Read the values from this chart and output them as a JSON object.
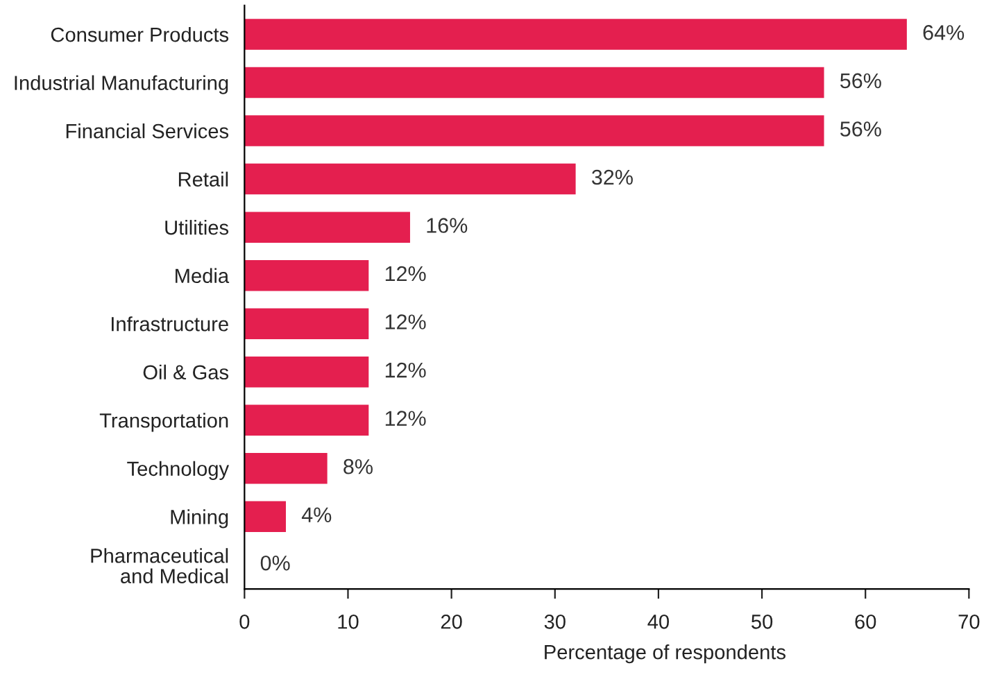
{
  "chart_data": {
    "type": "bar",
    "orientation": "horizontal",
    "categories": [
      "Consumer Products",
      "Industrial Manufacturing",
      "Financial Services",
      "Retail",
      "Utilities",
      "Media",
      "Infrastructure",
      "Oil & Gas",
      "Transportation",
      "Technology",
      "Mining",
      "Pharmaceutical\nand Medical"
    ],
    "values": [
      64,
      56,
      56,
      32,
      16,
      12,
      12,
      12,
      12,
      8,
      4,
      0
    ],
    "value_labels": [
      "64%",
      "56%",
      "56%",
      "32%",
      "16%",
      "12%",
      "12%",
      "12%",
      "12%",
      "8%",
      "4%",
      "0%"
    ],
    "color": "#e41f4f",
    "xlabel": "Percentage of respondents",
    "xlim": [
      0,
      70
    ],
    "xticks": [
      0,
      10,
      20,
      30,
      40,
      50,
      60,
      70
    ],
    "grid": false
  }
}
